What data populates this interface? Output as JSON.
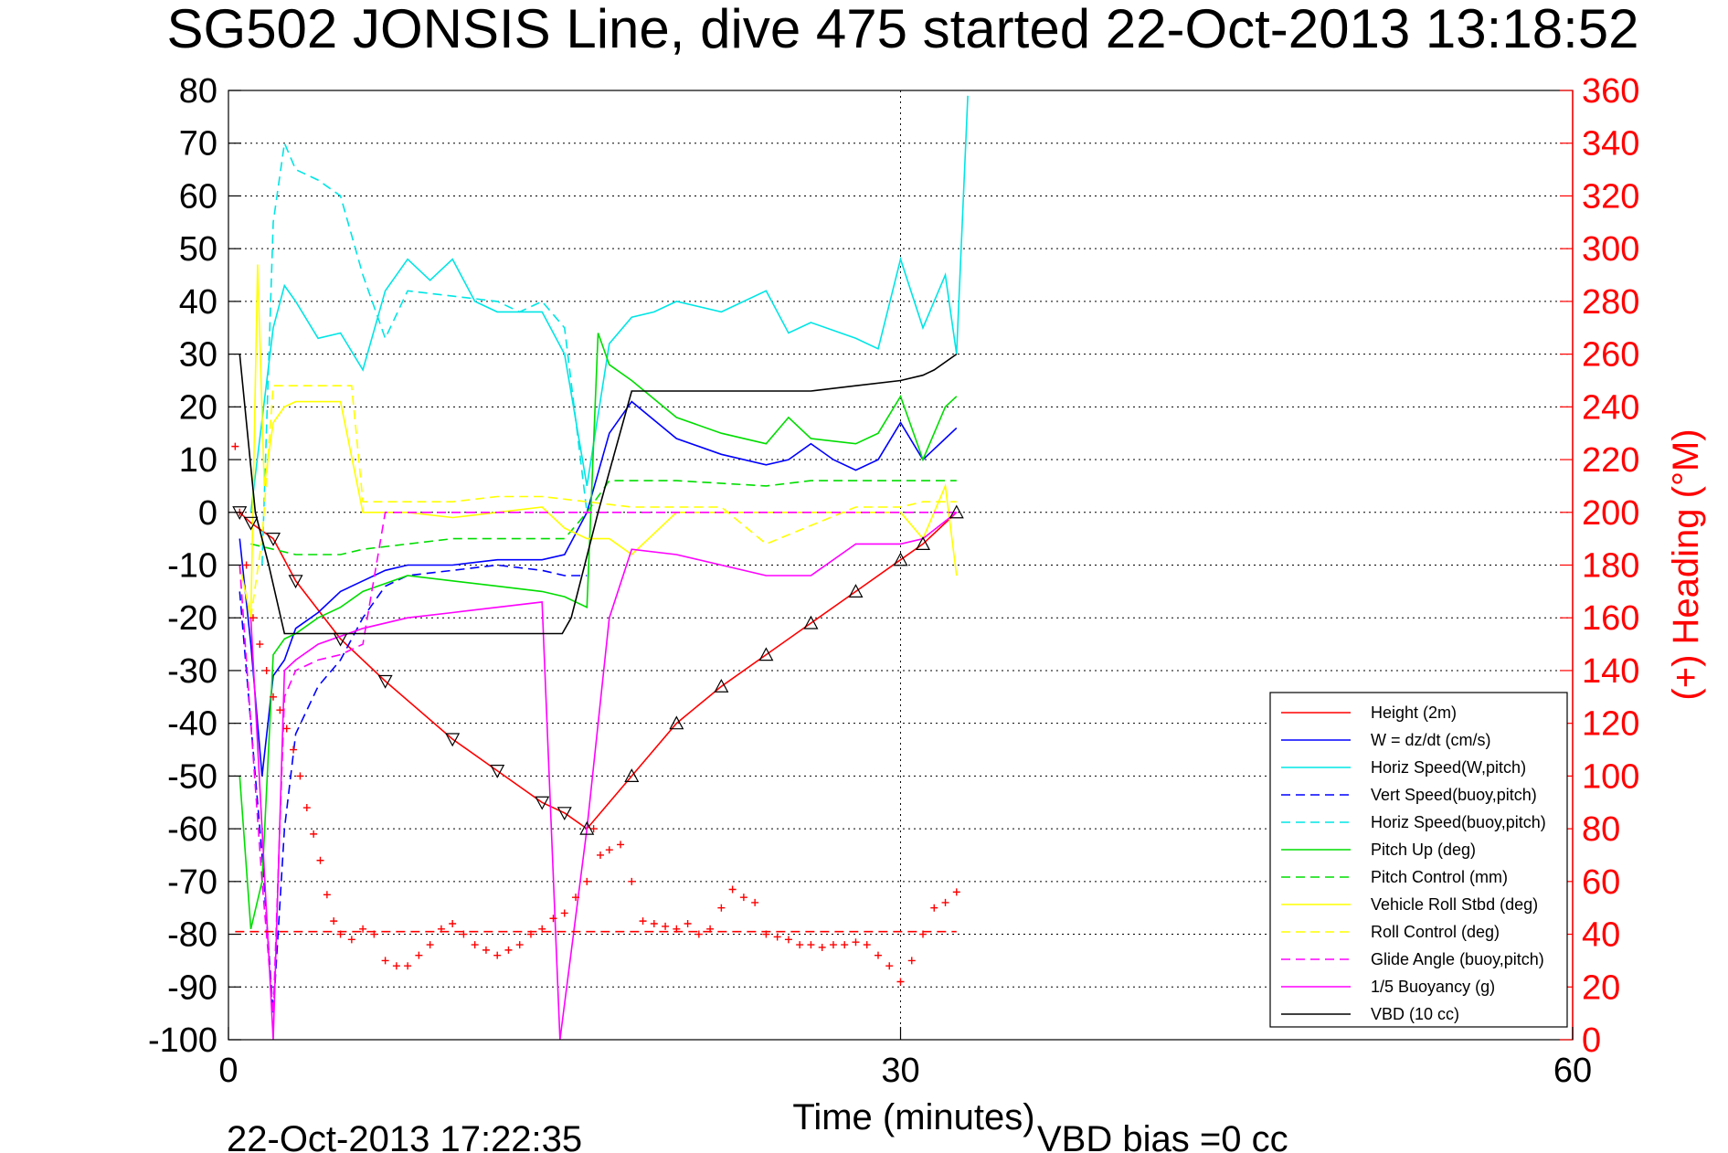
{
  "chart_data": {
    "type": "line",
    "title": "SG502 JONSIS Line, dive 475 started 22-Oct-2013 13:18:52",
    "xlabel": "Time (minutes)",
    "ylabel_right": "(+) Heading (°M)",
    "footer_left": "22-Oct-2013 17:22:35",
    "footer_right": "VBD bias =0 cc",
    "xlim": [
      0,
      60
    ],
    "ylim_left": [
      -100,
      80
    ],
    "ylim_right": [
      0,
      360
    ],
    "xticks": [
      "0",
      "30",
      "60"
    ],
    "yticks_left": [
      "80",
      "70",
      "60",
      "50",
      "40",
      "30",
      "20",
      "10",
      "0",
      "-10",
      "-20",
      "-30",
      "-40",
      "-50",
      "-60",
      "-70",
      "-80",
      "-90",
      "-100"
    ],
    "yticks_right": [
      "360",
      "340",
      "320",
      "300",
      "280",
      "260",
      "240",
      "220",
      "200",
      "180",
      "160",
      "140",
      "120",
      "100",
      "80",
      "60",
      "40",
      "20",
      "0"
    ],
    "grid": true,
    "legend_position": "bottom-right",
    "series": [
      {
        "name": "Height (2m)",
        "color": "#ff0000",
        "style": "solid",
        "x": [
          0.5,
          1,
          2,
          3,
          5,
          7,
          10,
          12,
          14,
          15,
          16,
          18,
          20,
          22,
          24,
          26,
          28,
          30,
          31,
          32.5
        ],
        "y": [
          0,
          -2,
          -5,
          -13,
          -24,
          -32,
          -43,
          -49,
          -55,
          -57,
          -60,
          -50,
          -40,
          -33,
          -27,
          -21,
          -15,
          -9,
          -6,
          0
        ]
      },
      {
        "name": "W = dz/dt (cm/s)",
        "color": "#0000ff",
        "style": "solid",
        "x": [
          0.5,
          1,
          1.5,
          2,
          2.5,
          3,
          4,
          5,
          6,
          7,
          8,
          10,
          12,
          14,
          15,
          16,
          17,
          18,
          20,
          22,
          24,
          25,
          26,
          27,
          28,
          29,
          30,
          31,
          32,
          32.5
        ],
        "y": [
          -5,
          -25,
          -50,
          -31,
          -28,
          -22,
          -19,
          -15,
          -13,
          -11,
          -10,
          -10,
          -9,
          -9,
          -8,
          0,
          15,
          21,
          14,
          11,
          9,
          10,
          13,
          10,
          8,
          10,
          17,
          10,
          14,
          16
        ]
      },
      {
        "name": "Horiz Speed(W,pitch)",
        "color": "#00e5e5",
        "style": "solid",
        "x": [
          1,
          2,
          2.5,
          3,
          4,
          5,
          6,
          7,
          8,
          9,
          10,
          11,
          12,
          14,
          15,
          16,
          17,
          18,
          19,
          20,
          22,
          24,
          25,
          26,
          28,
          29,
          30,
          31,
          32,
          32.5,
          33
        ],
        "y": [
          0,
          35,
          43,
          40,
          33,
          34,
          27,
          42,
          48,
          44,
          48,
          40,
          38,
          38,
          30,
          5,
          32,
          37,
          38,
          40,
          38,
          42,
          34,
          36,
          33,
          31,
          48,
          35,
          45,
          30,
          79
        ]
      },
      {
        "name": "Vert Speed(buoy,pitch)",
        "color": "#0000ff",
        "style": "dashed",
        "x": [
          0.5,
          1,
          1.5,
          2,
          2.5,
          3,
          4,
          5,
          6,
          7,
          8,
          10,
          12,
          14,
          15,
          16
        ],
        "y": [
          -15,
          -40,
          -65,
          -95,
          -60,
          -42,
          -33,
          -28,
          -20,
          -14,
          -12,
          -11,
          -10,
          -11,
          -12,
          -12
        ]
      },
      {
        "name": "Horiz Speed(buoy,pitch)",
        "color": "#00e5e5",
        "style": "dashed",
        "x": [
          1.5,
          2,
          2.5,
          3,
          4,
          5,
          6,
          7,
          8,
          10,
          12,
          13,
          14,
          15,
          16
        ],
        "y": [
          -10,
          55,
          70,
          65,
          63,
          60,
          45,
          33,
          42,
          41,
          40,
          38,
          40,
          35,
          0
        ]
      },
      {
        "name": "Pitch Up (deg)",
        "color": "#00dd00",
        "style": "solid",
        "x": [
          0.5,
          1,
          1.5,
          2,
          2.5,
          3,
          4,
          5,
          6,
          8,
          10,
          12,
          14,
          15,
          16,
          16.5,
          17,
          18,
          20,
          22,
          24,
          25,
          26,
          28,
          29,
          30,
          31,
          32,
          32.5
        ],
        "y": [
          -50,
          -79,
          -70,
          -27,
          -24,
          -23,
          -20,
          -18,
          -15,
          -12,
          -13,
          -14,
          -15,
          -16,
          -18,
          34,
          28,
          25,
          18,
          15,
          13,
          18,
          14,
          13,
          15,
          22,
          10,
          20,
          22
        ]
      },
      {
        "name": "Pitch Control (mm)",
        "color": "#00dd00",
        "style": "dashed",
        "x": [
          1,
          2,
          3,
          5,
          6,
          8,
          10,
          14,
          15,
          16,
          17,
          20,
          24,
          26,
          30,
          32.5
        ],
        "y": [
          -6,
          -7,
          -8,
          -8,
          -7,
          -6,
          -5,
          -5,
          -5,
          0,
          6,
          6,
          5,
          6,
          6,
          6
        ]
      },
      {
        "name": "Vehicle Roll Stbd (deg)",
        "color": "#ffff00",
        "style": "solid",
        "x": [
          0.5,
          1,
          1.3,
          1.6,
          2,
          2.5,
          3,
          4,
          5,
          6,
          8,
          10,
          12,
          14,
          15,
          16,
          17,
          18,
          20,
          24,
          28,
          30,
          31,
          32,
          32.5
        ],
        "y": [
          -10,
          -20,
          47,
          5,
          17,
          20,
          21,
          21,
          21,
          0,
          0,
          -1,
          0,
          1,
          -3,
          -5,
          -5,
          -8,
          0,
          0,
          0,
          0,
          -5,
          5,
          -12
        ]
      },
      {
        "name": "Roll Control (deg)",
        "color": "#ffff00",
        "style": "dashed",
        "x": [
          1,
          1.5,
          2,
          3,
          4,
          5,
          5.5,
          6,
          7,
          10,
          12,
          14,
          16,
          18,
          20,
          22,
          24,
          28,
          30,
          31,
          32.5
        ],
        "y": [
          -20,
          -5,
          24,
          24,
          24,
          24,
          24,
          2,
          2,
          2,
          3,
          3,
          2,
          1,
          1,
          1,
          -6,
          1,
          1,
          2,
          2
        ]
      },
      {
        "name": "Glide Angle (buoy,pitch)",
        "color": "#ff00ff",
        "style": "dashed",
        "x": [
          0.5,
          1,
          1.5,
          2,
          2.5,
          3,
          4,
          5,
          6,
          7,
          8,
          10,
          14,
          16,
          20,
          24,
          28,
          30,
          32.5
        ],
        "y": [
          -10,
          -40,
          -70,
          -95,
          -35,
          -30,
          -28,
          -27,
          -25,
          0,
          0,
          0,
          0,
          0,
          0,
          0,
          0,
          0,
          0
        ]
      },
      {
        "name": "1/5 Buoyancy (g)",
        "color": "#ff00ff",
        "style": "solid",
        "x": [
          1,
          1.5,
          2,
          2.5,
          3,
          4,
          6,
          8,
          10,
          12,
          14,
          14.8,
          16,
          17,
          18,
          20,
          22,
          24,
          26,
          28,
          30,
          31,
          32.5
        ],
        "y": [
          -20,
          -60,
          -100,
          -30,
          -28,
          -25,
          -22,
          -20,
          -19,
          -18,
          -17,
          -100,
          -60,
          -20,
          -7,
          -8,
          -10,
          -12,
          -12,
          -6,
          -6,
          -5,
          0
        ]
      },
      {
        "name": "VBD (10 cc)",
        "color": "#000000",
        "style": "solid",
        "x": [
          0.5,
          1.2,
          1.8,
          2.5,
          5,
          10,
          14.9,
          15.3,
          16.5,
          18,
          20,
          24,
          26,
          28,
          30,
          31,
          31.5,
          32.5
        ],
        "y": [
          30,
          0,
          -10,
          -23,
          -23,
          -23,
          -23,
          -20,
          0,
          23,
          23,
          23,
          23,
          24,
          25,
          26,
          27,
          30
        ]
      }
    ],
    "heading": {
      "name": "Heading",
      "color": "#ff0000",
      "marker": "+",
      "mean": 41,
      "x": [
        0.3,
        0.5,
        0.8,
        1.1,
        1.4,
        1.7,
        2,
        2.3,
        2.6,
        2.9,
        3.2,
        3.5,
        3.8,
        4.1,
        4.4,
        4.7,
        5,
        5.5,
        6,
        6.5,
        7,
        7.5,
        8,
        8.5,
        9,
        9.5,
        10,
        10.5,
        11,
        11.5,
        12,
        12.5,
        13,
        13.5,
        14,
        14.5,
        15,
        15.5,
        16,
        16.3,
        16.6,
        17,
        17.5,
        18,
        18.5,
        19,
        19.5,
        20,
        20.5,
        21,
        21.5,
        22,
        22.5,
        23,
        23.5,
        24,
        24.5,
        25,
        25.5,
        26,
        26.5,
        27,
        27.5,
        28,
        28.5,
        29,
        29.5,
        30,
        30.5,
        31,
        31.5,
        32,
        32.5
      ],
      "y": [
        225,
        200,
        180,
        160,
        150,
        140,
        130,
        125,
        118,
        110,
        100,
        88,
        78,
        68,
        55,
        45,
        40,
        38,
        42,
        40,
        30,
        28,
        28,
        32,
        36,
        42,
        44,
        40,
        36,
        34,
        32,
        34,
        36,
        40,
        42,
        46,
        48,
        54,
        60,
        80,
        70,
        72,
        74,
        60,
        45,
        44,
        43,
        42,
        44,
        40,
        42,
        50,
        57,
        54,
        52,
        40,
        39,
        38,
        36,
        36,
        35,
        36,
        36,
        37,
        36,
        32,
        28,
        22,
        30,
        40,
        50,
        52,
        56
      ]
    }
  }
}
